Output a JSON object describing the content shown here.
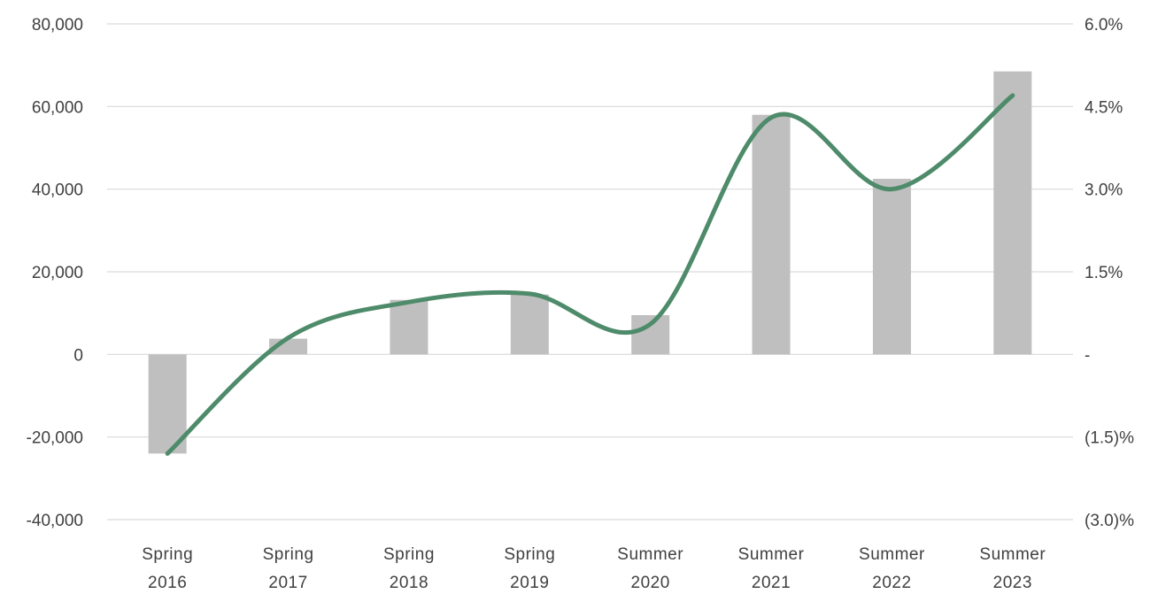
{
  "chart_data": {
    "type": "bar",
    "categories": [
      [
        "Spring",
        "2016"
      ],
      [
        "Spring",
        "2017"
      ],
      [
        "Spring",
        "2018"
      ],
      [
        "Spring",
        "2019"
      ],
      [
        "Summer",
        "2020"
      ],
      [
        "Summer",
        "2021"
      ],
      [
        "Summer",
        "2022"
      ],
      [
        "Summer",
        "2023"
      ]
    ],
    "series": [
      {
        "type": "bar",
        "axis": "left",
        "color": "#bfbfbf",
        "values": [
          -24000,
          3800,
          13200,
          14500,
          9500,
          58000,
          42500,
          68500
        ]
      },
      {
        "type": "line",
        "smooth": true,
        "axis": "right",
        "color": "#4e8b6a",
        "values": [
          -1.8,
          0.3,
          0.95,
          1.1,
          0.55,
          4.3,
          3.0,
          4.7
        ]
      }
    ],
    "y_left": {
      "min": -40000,
      "max": 80000,
      "step": 20000,
      "tick_labels": [
        "-40,000",
        "-20,000",
        "0",
        "20,000",
        "40,000",
        "60,000",
        "80,000"
      ]
    },
    "y_right": {
      "min": -3.0,
      "max": 6.0,
      "step": 1.5,
      "tick_labels": [
        "(3.0)%",
        "(1.5)%",
        "-",
        "1.5%",
        "3.0%",
        "4.5%",
        "6.0%"
      ]
    },
    "grid": true,
    "gridline_color": "#d9d9d9",
    "legend": "none"
  }
}
